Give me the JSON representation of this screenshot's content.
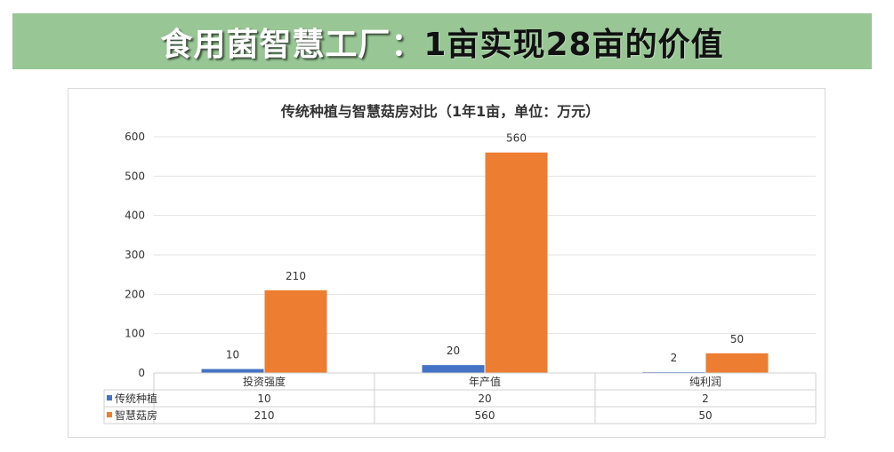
{
  "banner": {
    "part1": "食用菌智慧工厂：",
    "part2": "1亩实现28亩的价值"
  },
  "colors": {
    "banner_bg": "#98c795",
    "series1": "#4472c4",
    "series2": "#ed7d31"
  },
  "chart_data": {
    "type": "bar",
    "title": "传统种植与智慧菇房对比（1年1亩，单位：万元）",
    "categories": [
      "投资强度",
      "年产值",
      "纯利润"
    ],
    "series": [
      {
        "name": "传统种植",
        "values": [
          10,
          20,
          2
        ],
        "labels": [
          "10",
          "20",
          "2"
        ]
      },
      {
        "name": "智慧菇房",
        "values": [
          210,
          560,
          50
        ],
        "labels": [
          "210",
          "560",
          "50"
        ]
      }
    ],
    "ylim": [
      0,
      600
    ],
    "yticks": [
      "0",
      "100",
      "200",
      "300",
      "400",
      "500",
      "600"
    ],
    "grid": true,
    "legend": "data-table"
  }
}
